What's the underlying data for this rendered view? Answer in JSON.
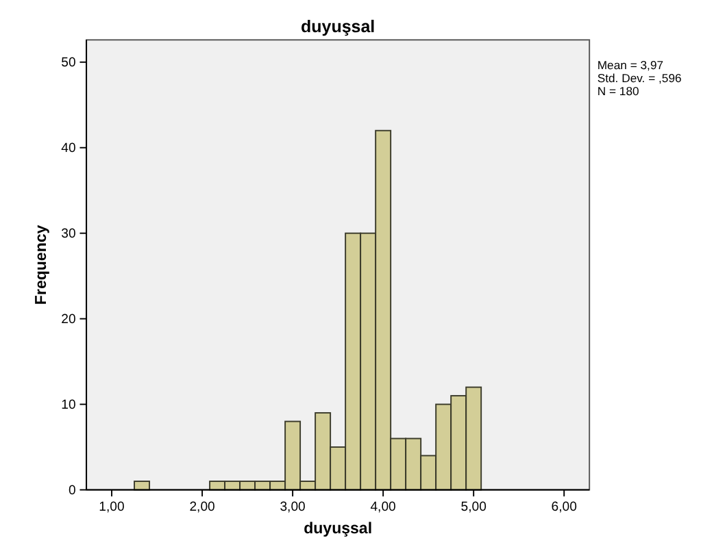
{
  "chart_data": {
    "type": "histogram",
    "title": "duyuşsal",
    "xlabel": "duyuşsal",
    "ylabel": "Frequency",
    "annotations": [
      "Mean = 3,97",
      "Std. Dev. = ,596",
      "N = 180"
    ],
    "bins": [
      1.25,
      1.4167,
      1.5833,
      1.75,
      1.9167,
      2.0833,
      2.25,
      2.4167,
      2.5833,
      2.75,
      2.9167,
      3.0833,
      3.25,
      3.4167,
      3.5833,
      3.75,
      3.9167,
      4.0833,
      4.25,
      4.4167,
      4.5833,
      4.75,
      4.9167,
      5.0833
    ],
    "values": [
      1,
      0,
      0,
      0,
      0,
      1,
      1,
      1,
      1,
      1,
      8,
      1,
      9,
      5,
      30,
      30,
      42,
      6,
      6,
      4,
      10,
      11,
      12
    ],
    "color": "#d3ce97",
    "xlim": [
      0.72,
      6.28
    ],
    "xticks": [
      {
        "value": 1,
        "label": "1,00"
      },
      {
        "value": 2,
        "label": "2,00"
      },
      {
        "value": 3,
        "label": "3,00"
      },
      {
        "value": 4,
        "label": "4,00"
      },
      {
        "value": 5,
        "label": "5,00"
      },
      {
        "value": 6,
        "label": "6,00"
      }
    ],
    "ylim": [
      0,
      52.6
    ],
    "yticks": [
      0,
      10,
      20,
      30,
      40,
      50
    ]
  }
}
